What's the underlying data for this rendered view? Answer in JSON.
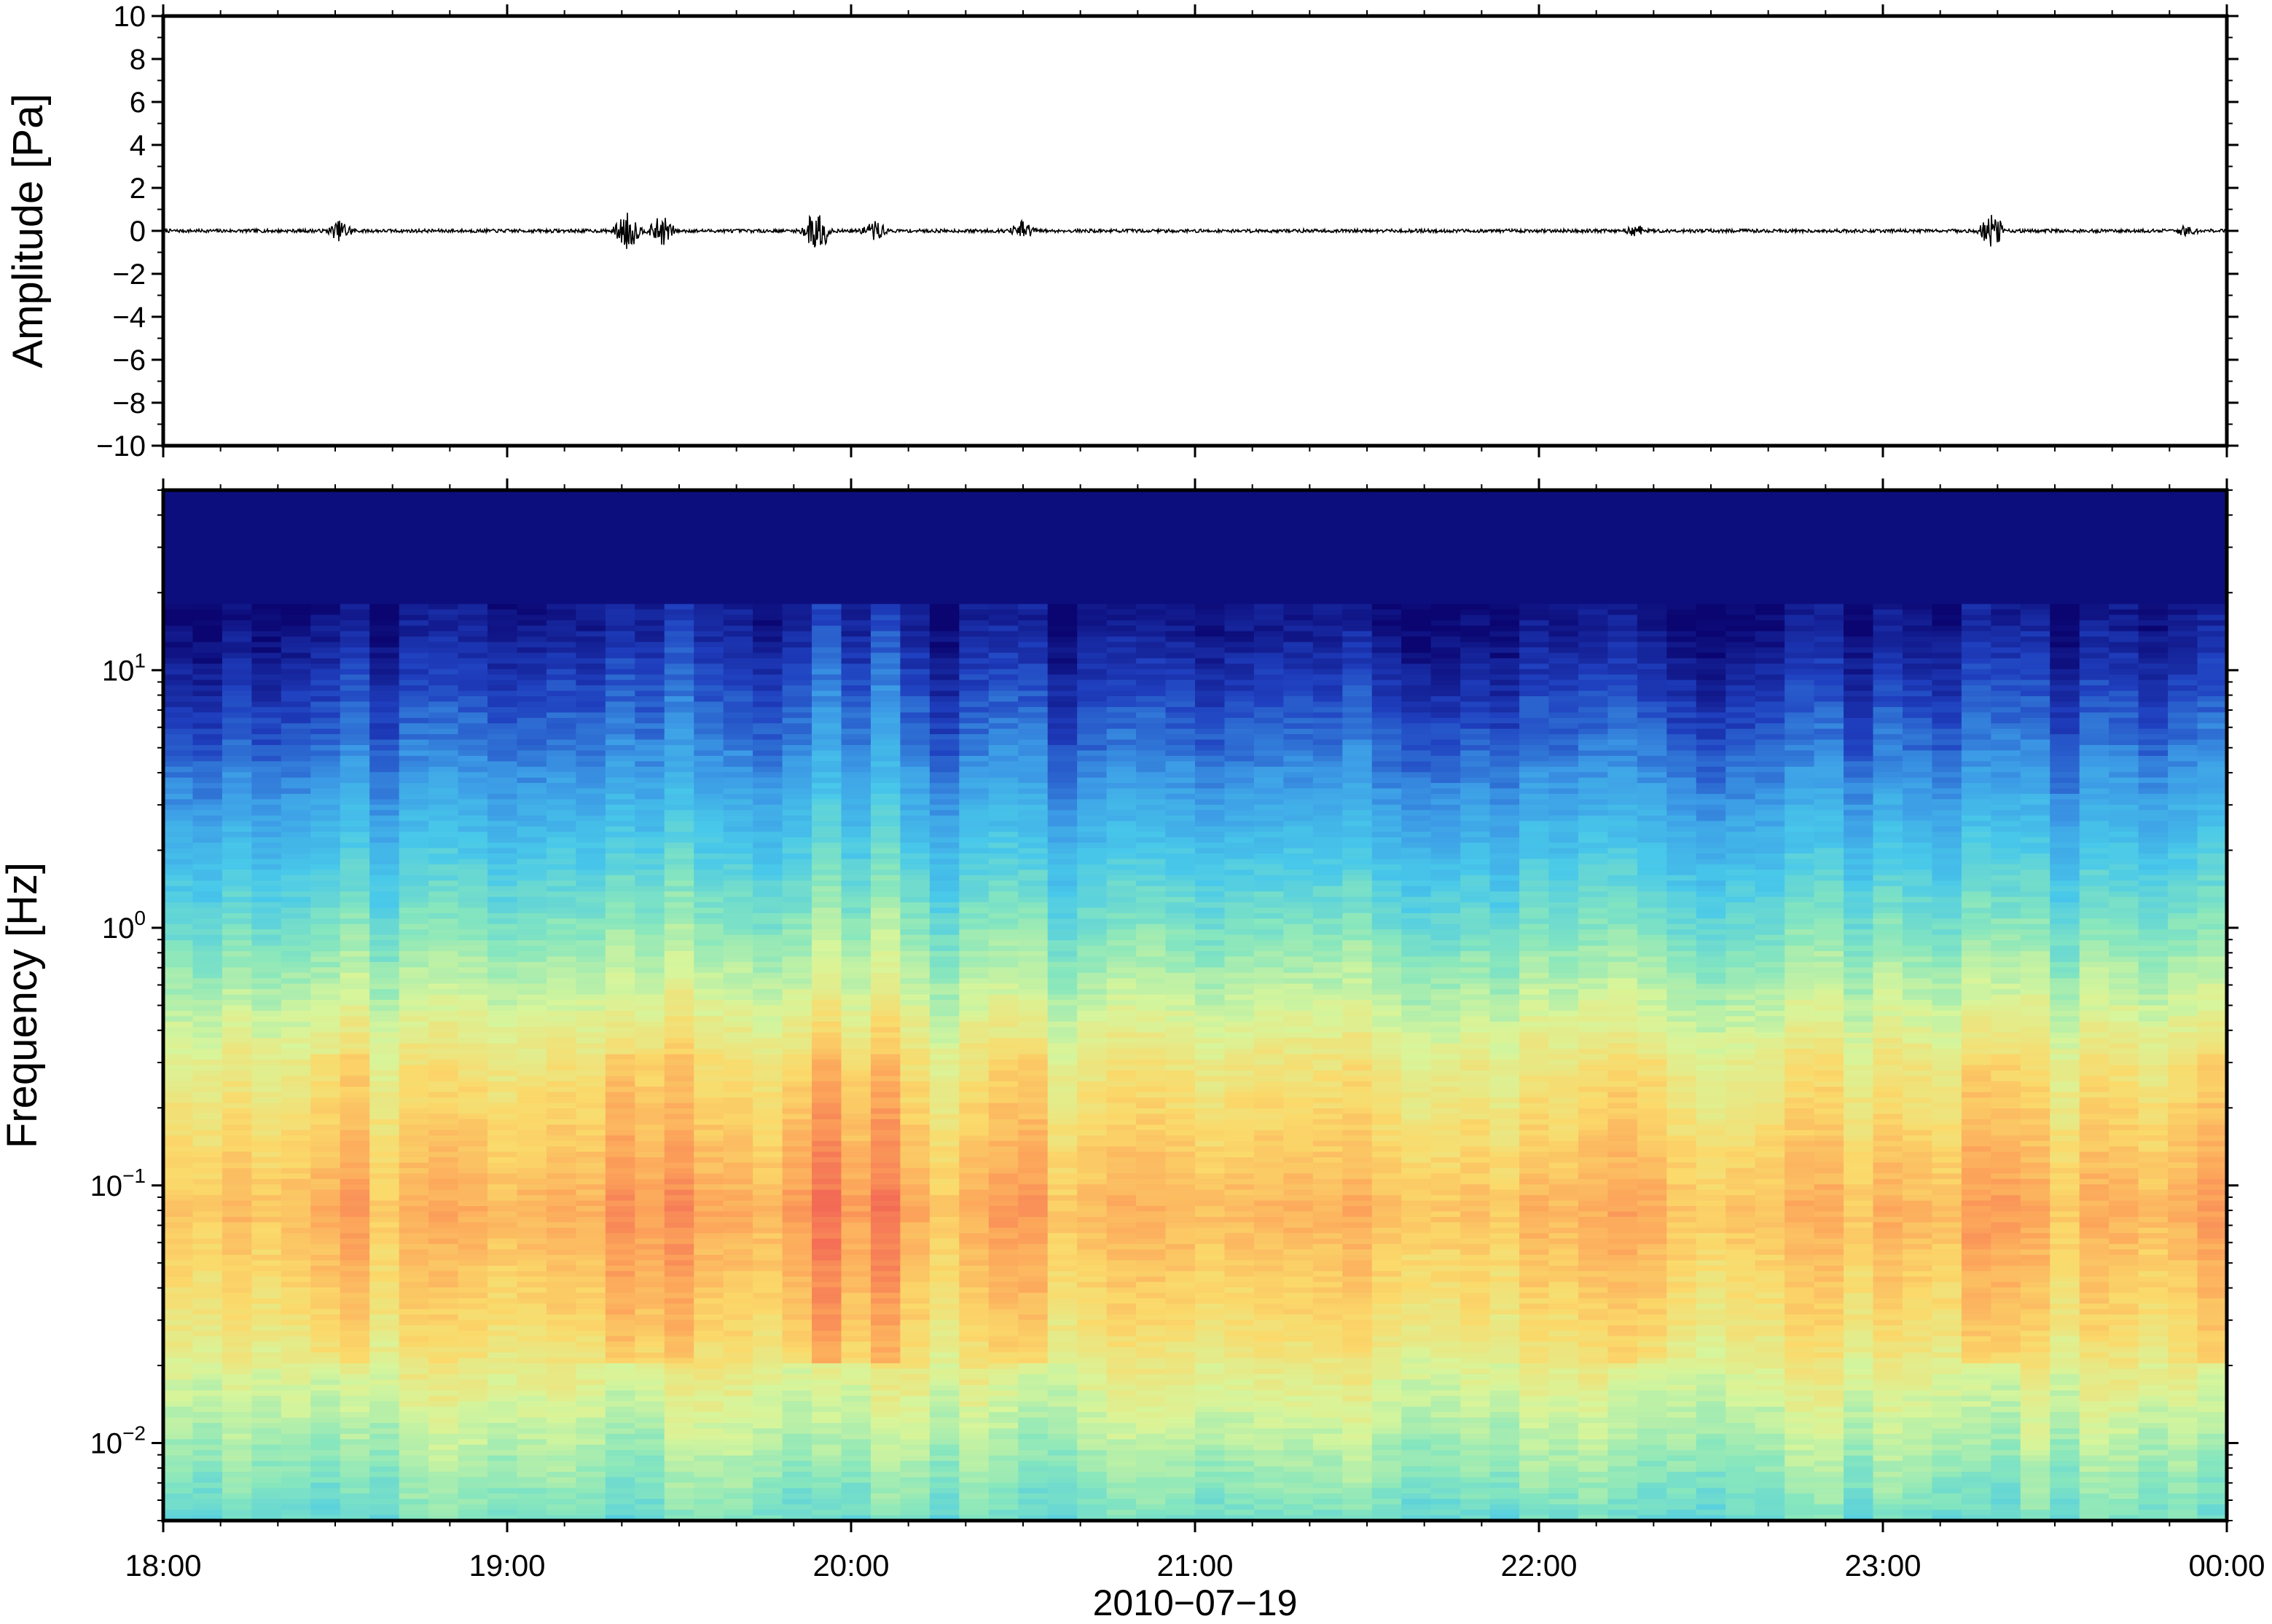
{
  "chart_data": [
    {
      "type": "line",
      "title": "",
      "xlabel": "",
      "ylabel": "Amplitude [Pa]",
      "x_range": [
        "18:00",
        "00:00"
      ],
      "ylim": [
        -10,
        10
      ],
      "ytick_values": [
        10,
        8,
        6,
        4,
        2,
        0,
        -2,
        -4,
        -6,
        -8,
        -10
      ],
      "ytick_labels": [
        "10",
        "8",
        "6",
        "4",
        "2",
        "0",
        "−2",
        "−4",
        "−6",
        "−8",
        "−10"
      ],
      "grid": false,
      "series": [
        {
          "color": "#000000",
          "baseline": 0,
          "bursts": [
            {
              "t": "18:31",
              "amp": 0.5
            },
            {
              "t": "19:21",
              "amp": 0.9
            },
            {
              "t": "19:27",
              "amp": 0.7
            },
            {
              "t": "19:54",
              "amp": 1.1
            },
            {
              "t": "20:04",
              "amp": 0.5
            },
            {
              "t": "20:30",
              "amp": 0.5
            },
            {
              "t": "22:17",
              "amp": 0.3
            },
            {
              "t": "23:19",
              "amp": 0.8
            },
            {
              "t": "23:53",
              "amp": 0.3
            }
          ]
        }
      ]
    },
    {
      "type": "heatmap",
      "title": "",
      "xlabel": "2010−07−19",
      "ylabel": "Frequency [Hz]",
      "yscale": "log",
      "ylim": [
        0.005,
        50
      ],
      "ytick_values": [
        0.01,
        0.1,
        1,
        10
      ],
      "ytick_labels": [
        {
          "base": "10",
          "exp": "−2"
        },
        {
          "base": "10",
          "exp": "−1"
        },
        {
          "base": "10",
          "exp": "0"
        },
        {
          "base": "10",
          "exp": "1"
        }
      ],
      "xtick_labels": [
        "18:00",
        "19:00",
        "20:00",
        "21:00",
        "22:00",
        "23:00",
        "00:00"
      ],
      "colormap": "jet",
      "colors": [
        "#0a0570",
        "#1f3fbf",
        "#3c9be6",
        "#48c8ea",
        "#86e6be",
        "#d7f59b",
        "#fbd96a",
        "#fca45a",
        "#f36a55"
      ],
      "active_times": [
        {
          "t": "18:31",
          "strength": 0.7
        },
        {
          "t": "19:21",
          "strength": 1.0
        },
        {
          "t": "19:27",
          "strength": 0.8
        },
        {
          "t": "19:54",
          "strength": 1.2
        },
        {
          "t": "20:04",
          "strength": 0.9
        },
        {
          "t": "20:30",
          "strength": 0.9
        },
        {
          "t": "22:17",
          "strength": 0.6
        },
        {
          "t": "23:19",
          "strength": 0.9
        },
        {
          "t": "23:59",
          "strength": 0.7
        }
      ]
    }
  ]
}
